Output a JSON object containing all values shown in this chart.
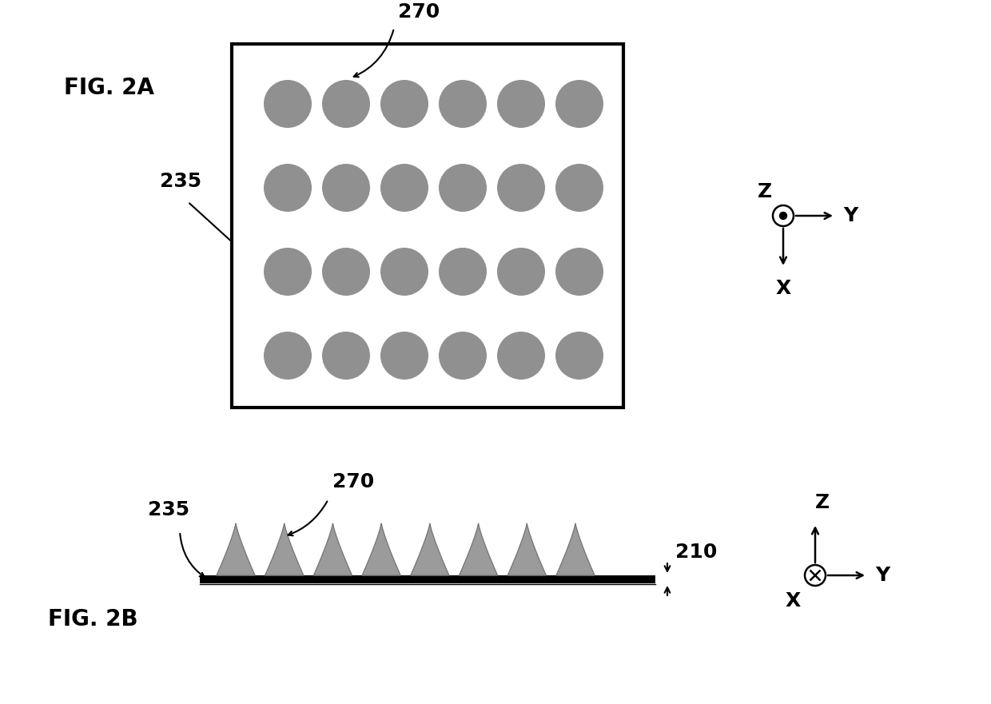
{
  "bg_color": "#ffffff",
  "fig_2a_label": "FIG. 2A",
  "fig_2b_label": "FIG. 2B",
  "label_235_top": "235",
  "label_270_top": "270",
  "label_235_bot": "235",
  "label_270_bot": "270",
  "label_210_bot": "210",
  "dot_color": "#909090",
  "dot_rows": 4,
  "dot_cols": 6,
  "axis_label_z": "Z",
  "axis_label_y": "Y",
  "axis_label_x": "X"
}
